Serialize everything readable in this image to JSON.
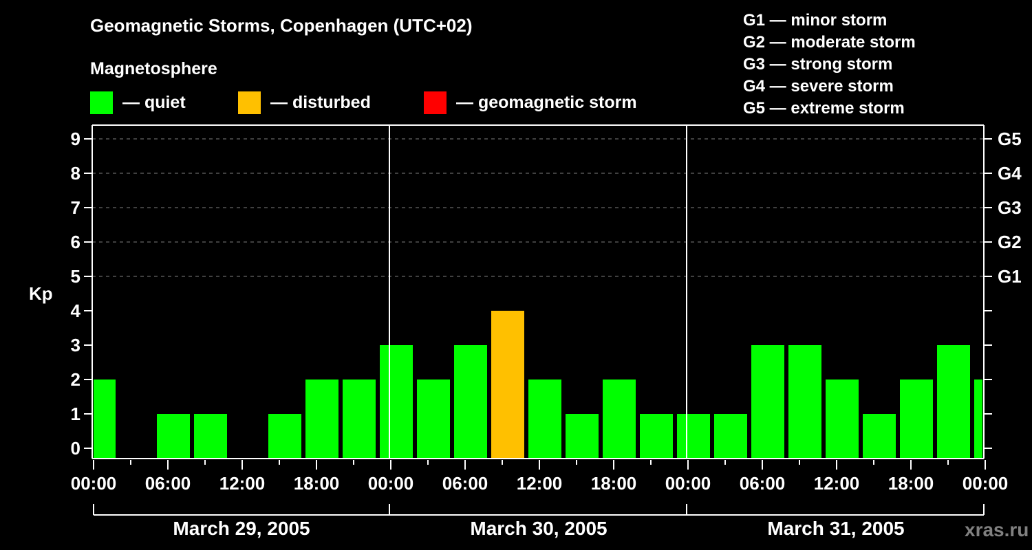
{
  "header": {
    "title": "Geomagnetic Storms, Copenhagen (UTC+02)",
    "subtitle": "Magnetosphere"
  },
  "legend": {
    "items": [
      {
        "label": "— quiet",
        "color": "#00ff00"
      },
      {
        "label": "— disturbed",
        "color": "#ffc000"
      },
      {
        "label": "— geomagnetic storm",
        "color": "#ff0000"
      }
    ]
  },
  "storm_scale": [
    "G1 — minor storm",
    "G2 — moderate storm",
    "G3 — strong storm",
    "G4 — severe storm",
    "G5 — extreme storm"
  ],
  "watermark": "xras.ru",
  "chart_data": {
    "type": "bar",
    "title": "Geomagnetic Storms, Copenhagen (UTC+02)",
    "ylabel": "Kp",
    "xlabel": "",
    "ylim": [
      0,
      9
    ],
    "yticks": [
      "0",
      "1",
      "2",
      "3",
      "4",
      "5",
      "6",
      "7",
      "8",
      "9"
    ],
    "right_ticks": [
      {
        "kp": 5,
        "label": "G1"
      },
      {
        "kp": 6,
        "label": "G2"
      },
      {
        "kp": 7,
        "label": "G3"
      },
      {
        "kp": 8,
        "label": "G4"
      },
      {
        "kp": 9,
        "label": "G5"
      }
    ],
    "xticks": [
      "00:00",
      "06:00",
      "12:00",
      "18:00",
      "00:00",
      "06:00",
      "12:00",
      "18:00",
      "00:00",
      "06:00",
      "12:00",
      "18:00",
      "00:00"
    ],
    "dates": [
      "March 29, 2005",
      "March 30, 2005",
      "March 31, 2005"
    ],
    "grid": "dashed at Kp 5-9",
    "categories": [
      "Mar29 00-02",
      "Mar29 02-05",
      "Mar29 05-08",
      "Mar29 08-11",
      "Mar29 11-14",
      "Mar29 14-17",
      "Mar29 17-20",
      "Mar29 20-23",
      "Mar29 23-Mar30 02",
      "Mar30 02-05",
      "Mar30 05-08",
      "Mar30 08-11",
      "Mar30 11-14",
      "Mar30 14-17",
      "Mar30 17-20",
      "Mar30 20-23",
      "Mar30 23-Mar31 02",
      "Mar31 02-05",
      "Mar31 05-08",
      "Mar31 08-11",
      "Mar31 11-14",
      "Mar31 14-17",
      "Mar31 17-20",
      "Mar31 20-23",
      "Mar31 23-24"
    ],
    "values": [
      2,
      0,
      1,
      1,
      0,
      1,
      2,
      2,
      3,
      2,
      3,
      4,
      2,
      1,
      2,
      1,
      1,
      1,
      3,
      3,
      2,
      1,
      2,
      3,
      2
    ],
    "colors": [
      "quiet",
      "quiet",
      "quiet",
      "quiet",
      "quiet",
      "quiet",
      "quiet",
      "quiet",
      "quiet",
      "quiet",
      "quiet",
      "disturbed",
      "quiet",
      "quiet",
      "quiet",
      "quiet",
      "quiet",
      "quiet",
      "quiet",
      "quiet",
      "quiet",
      "quiet",
      "quiet",
      "quiet",
      "quiet"
    ]
  }
}
